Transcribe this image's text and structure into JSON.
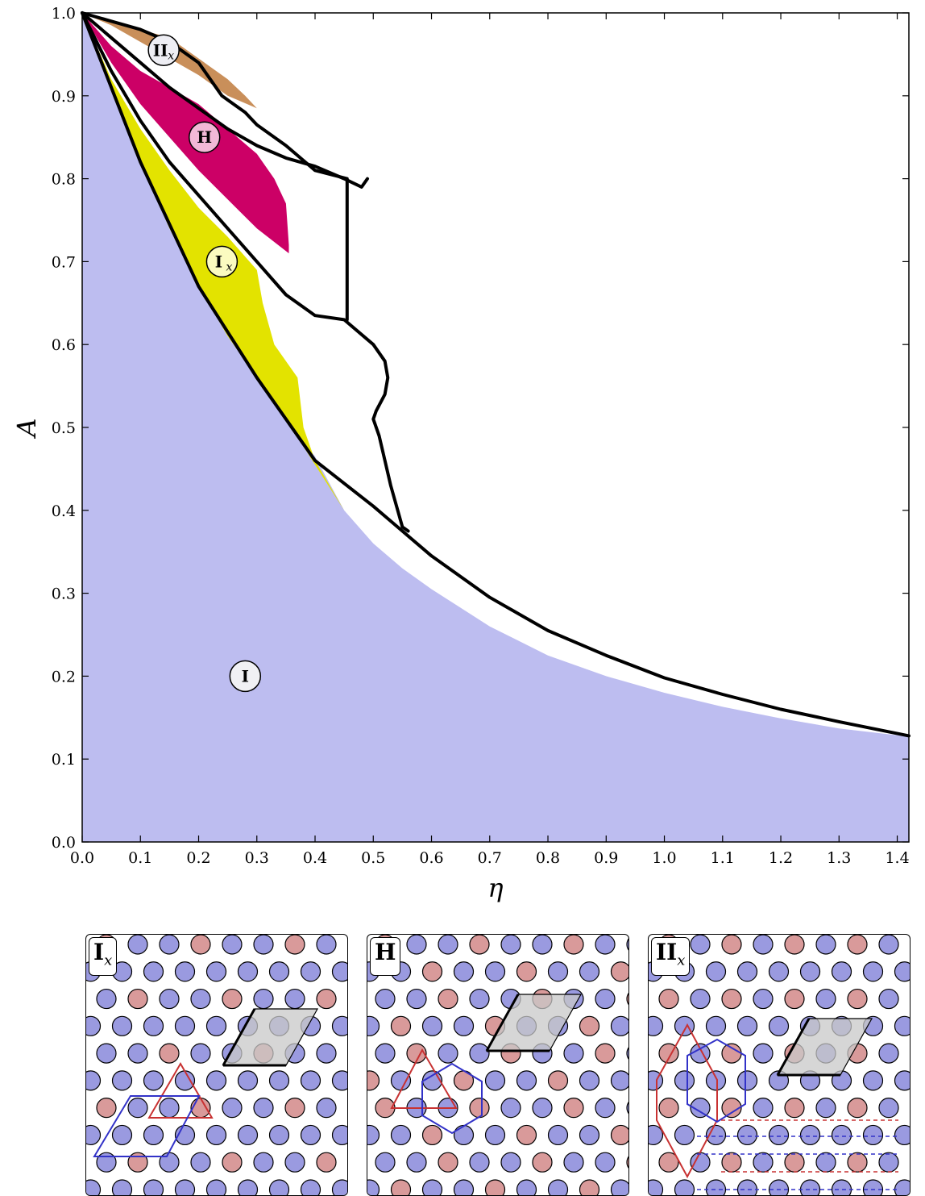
{
  "chart_data": {
    "type": "phase-diagram",
    "xlabel": "η",
    "ylabel": "A",
    "xlim": [
      0.0,
      1.42
    ],
    "ylim": [
      0.0,
      1.0
    ],
    "x_ticks": [
      "0.0",
      "0.1",
      "0.2",
      "0.3",
      "0.4",
      "0.5",
      "0.6",
      "0.7",
      "0.8",
      "0.9",
      "1.0",
      "1.1",
      "1.2",
      "1.3",
      "1.4"
    ],
    "y_ticks": [
      "0.0",
      "0.1",
      "0.2",
      "0.3",
      "0.4",
      "0.5",
      "0.6",
      "0.7",
      "0.8",
      "0.9",
      "1.0"
    ],
    "regions": [
      {
        "id": "I",
        "label": "I",
        "sub": "",
        "color": "#bdbdf0",
        "label_at": [
          0.28,
          0.2
        ],
        "polygon": [
          [
            0,
            0
          ],
          [
            0,
            1
          ],
          [
            0.05,
            0.91
          ],
          [
            0.1,
            0.82
          ],
          [
            0.15,
            0.74
          ],
          [
            0.2,
            0.67
          ],
          [
            0.25,
            0.61
          ],
          [
            0.3,
            0.56
          ],
          [
            0.35,
            0.51
          ],
          [
            0.4,
            0.465
          ],
          [
            0.45,
            0.4
          ],
          [
            0.5,
            0.36
          ],
          [
            0.55,
            0.33
          ],
          [
            0.6,
            0.305
          ],
          [
            0.7,
            0.26
          ],
          [
            0.8,
            0.225
          ],
          [
            0.9,
            0.2
          ],
          [
            1.0,
            0.18
          ],
          [
            1.1,
            0.163
          ],
          [
            1.2,
            0.149
          ],
          [
            1.3,
            0.137
          ],
          [
            1.42,
            0.127
          ],
          [
            1.42,
            0
          ]
        ]
      },
      {
        "id": "Ix",
        "label": "I",
        "sub": "x",
        "color": "#e3e300",
        "label_at": [
          0.24,
          0.7
        ],
        "polygon": [
          [
            0,
            1
          ],
          [
            0.05,
            0.92
          ],
          [
            0.1,
            0.86
          ],
          [
            0.15,
            0.81
          ],
          [
            0.2,
            0.765
          ],
          [
            0.25,
            0.73
          ],
          [
            0.3,
            0.69
          ],
          [
            0.31,
            0.65
          ],
          [
            0.33,
            0.6
          ],
          [
            0.37,
            0.56
          ],
          [
            0.38,
            0.5
          ],
          [
            0.4,
            0.46
          ],
          [
            0.45,
            0.4
          ],
          [
            0.35,
            0.51
          ],
          [
            0.3,
            0.56
          ],
          [
            0.25,
            0.61
          ],
          [
            0.2,
            0.67
          ],
          [
            0.15,
            0.74
          ],
          [
            0.1,
            0.82
          ],
          [
            0.05,
            0.91
          ]
        ]
      },
      {
        "id": "H",
        "label": "H",
        "sub": "",
        "color": "#cc0066",
        "label_at": [
          0.21,
          0.85
        ],
        "polygon": [
          [
            0,
            1
          ],
          [
            0.05,
            0.96
          ],
          [
            0.1,
            0.93
          ],
          [
            0.15,
            0.91
          ],
          [
            0.2,
            0.89
          ],
          [
            0.25,
            0.86
          ],
          [
            0.3,
            0.83
          ],
          [
            0.33,
            0.8
          ],
          [
            0.35,
            0.77
          ],
          [
            0.355,
            0.72
          ],
          [
            0.355,
            0.71
          ],
          [
            0.3,
            0.74
          ],
          [
            0.25,
            0.775
          ],
          [
            0.2,
            0.81
          ],
          [
            0.15,
            0.85
          ],
          [
            0.1,
            0.89
          ],
          [
            0.05,
            0.94
          ]
        ]
      },
      {
        "id": "IIx",
        "label": "II",
        "sub": "x",
        "color": "#c98f5a",
        "label_at": [
          0.14,
          0.955
        ],
        "polygon": [
          [
            0,
            1
          ],
          [
            0.05,
            0.99
          ],
          [
            0.1,
            0.98
          ],
          [
            0.15,
            0.97
          ],
          [
            0.2,
            0.945
          ],
          [
            0.25,
            0.92
          ],
          [
            0.28,
            0.9
          ],
          [
            0.3,
            0.885
          ],
          [
            0.25,
            0.9
          ],
          [
            0.2,
            0.925
          ],
          [
            0.15,
            0.945
          ],
          [
            0.1,
            0.965
          ],
          [
            0.05,
            0.985
          ]
        ]
      }
    ],
    "boundaries": [
      [
        [
          0,
          1
        ],
        [
          0.1,
          0.82
        ],
        [
          0.2,
          0.67
        ],
        [
          0.3,
          0.56
        ],
        [
          0.4,
          0.46
        ],
        [
          0.5,
          0.405
        ],
        [
          0.55,
          0.375
        ],
        [
          0.6,
          0.345
        ],
        [
          0.7,
          0.295
        ],
        [
          0.8,
          0.255
        ],
        [
          0.9,
          0.225
        ],
        [
          1.0,
          0.198
        ],
        [
          1.1,
          0.178
        ],
        [
          1.2,
          0.16
        ],
        [
          1.3,
          0.145
        ],
        [
          1.42,
          0.128
        ]
      ],
      [
        [
          0,
          1
        ],
        [
          0.05,
          0.93
        ],
        [
          0.1,
          0.87
        ],
        [
          0.15,
          0.82
        ],
        [
          0.2,
          0.78
        ],
        [
          0.25,
          0.74
        ],
        [
          0.3,
          0.7
        ],
        [
          0.35,
          0.66
        ],
        [
          0.4,
          0.635
        ],
        [
          0.45,
          0.63
        ],
        [
          0.5,
          0.6
        ],
        [
          0.52,
          0.58
        ],
        [
          0.525,
          0.56
        ],
        [
          0.52,
          0.54
        ],
        [
          0.505,
          0.52
        ],
        [
          0.5,
          0.51
        ],
        [
          0.51,
          0.49
        ],
        [
          0.52,
          0.46
        ],
        [
          0.53,
          0.43
        ],
        [
          0.55,
          0.38
        ],
        [
          0.56,
          0.375
        ]
      ],
      [
        [
          0,
          1
        ],
        [
          0.05,
          0.97
        ],
        [
          0.1,
          0.94
        ],
        [
          0.15,
          0.91
        ],
        [
          0.2,
          0.885
        ],
        [
          0.25,
          0.86
        ],
        [
          0.3,
          0.84
        ],
        [
          0.35,
          0.825
        ],
        [
          0.4,
          0.815
        ],
        [
          0.45,
          0.8
        ],
        [
          0.48,
          0.79
        ],
        [
          0.49,
          0.8
        ]
      ],
      [
        [
          0,
          1
        ],
        [
          0.05,
          0.99
        ],
        [
          0.1,
          0.98
        ],
        [
          0.15,
          0.965
        ],
        [
          0.2,
          0.94
        ],
        [
          0.24,
          0.9
        ],
        [
          0.28,
          0.88
        ],
        [
          0.3,
          0.865
        ],
        [
          0.35,
          0.84
        ],
        [
          0.4,
          0.81
        ],
        [
          0.455,
          0.8
        ],
        [
          0.455,
          0.63
        ]
      ]
    ]
  },
  "panels": [
    {
      "tag": "I",
      "sub": "x",
      "lattice": "Ix"
    },
    {
      "tag": "H",
      "sub": "",
      "lattice": "H"
    },
    {
      "tag": "II",
      "sub": "x",
      "lattice": "IIx"
    }
  ],
  "colors": {
    "blue_particle": "#9a9ae0",
    "red_particle": "#d99a9a",
    "cell_fill": "#c8c8c8",
    "red_line": "#c83232",
    "blue_line": "#3232c8"
  }
}
